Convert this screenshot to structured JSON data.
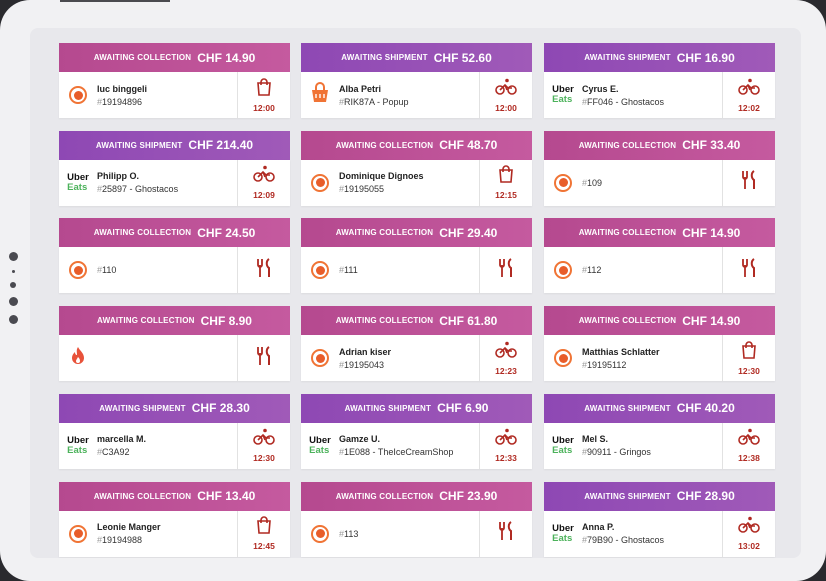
{
  "orders": [
    {
      "status": "AWAITING COLLECTION",
      "amount": "CHF 14.90",
      "kind": "collection",
      "logo": "circle-icon",
      "name": "luc binggeli",
      "ref": "19194896",
      "icon": "bag-icon",
      "time": "12:00"
    },
    {
      "status": "AWAITING SHIPMENT",
      "amount": "CHF 52.60",
      "kind": "shipment",
      "logo": "bag-logo-icon",
      "name": "Alba Petri",
      "ref": "RIK87A - Popup",
      "icon": "bike-icon",
      "time": "12:00"
    },
    {
      "status": "AWAITING SHIPMENT",
      "amount": "CHF 16.90",
      "kind": "shipment",
      "logo": "uber-eats",
      "name": "Cyrus E.",
      "ref": "FF046 - Ghostacos",
      "icon": "bike-icon",
      "time": "12:02"
    },
    {
      "status": "AWAITING SHIPMENT",
      "amount": "CHF 214.40",
      "kind": "shipment",
      "logo": "uber-eats",
      "name": "Philipp O.",
      "ref": "25897 - Ghostacos",
      "icon": "bike-icon",
      "time": "12:09"
    },
    {
      "status": "AWAITING COLLECTION",
      "amount": "CHF 48.70",
      "kind": "collection",
      "logo": "circle-icon",
      "name": "Dominique Dignoes",
      "ref": "19195055",
      "icon": "bag-icon",
      "time": "12:15"
    },
    {
      "status": "AWAITING COLLECTION",
      "amount": "CHF 33.40",
      "kind": "collection",
      "logo": "circle-icon",
      "name": "",
      "ref": "109",
      "icon": "fork-knife-icon",
      "time": ""
    },
    {
      "status": "AWAITING COLLECTION",
      "amount": "CHF 24.50",
      "kind": "collection",
      "logo": "circle-icon",
      "name": "",
      "ref": "110",
      "icon": "fork-knife-icon",
      "time": ""
    },
    {
      "status": "AWAITING COLLECTION",
      "amount": "CHF 29.40",
      "kind": "collection",
      "logo": "circle-icon",
      "name": "",
      "ref": "111",
      "icon": "fork-knife-icon",
      "time": ""
    },
    {
      "status": "AWAITING COLLECTION",
      "amount": "CHF 14.90",
      "kind": "collection",
      "logo": "circle-icon",
      "name": "",
      "ref": "112",
      "icon": "fork-knife-icon",
      "time": ""
    },
    {
      "status": "AWAITING COLLECTION",
      "amount": "CHF 8.90",
      "kind": "collection",
      "logo": "flame-icon",
      "name": "",
      "ref": "",
      "icon": "fork-knife-icon",
      "time": ""
    },
    {
      "status": "AWAITING COLLECTION",
      "amount": "CHF 61.80",
      "kind": "collection",
      "logo": "circle-icon",
      "name": "Adrian kiser",
      "ref": "19195043",
      "icon": "bike-icon",
      "time": "12:23"
    },
    {
      "status": "AWAITING COLLECTION",
      "amount": "CHF 14.90",
      "kind": "collection",
      "logo": "circle-icon",
      "name": "Matthias Schlatter",
      "ref": "19195112",
      "icon": "bag-icon",
      "time": "12:30"
    },
    {
      "status": "AWAITING SHIPMENT",
      "amount": "CHF 28.30",
      "kind": "shipment",
      "logo": "uber-eats",
      "name": "marcella M.",
      "ref": "C3A92",
      "icon": "bike-icon",
      "time": "12:30"
    },
    {
      "status": "AWAITING SHIPMENT",
      "amount": "CHF 6.90",
      "kind": "shipment",
      "logo": "uber-eats",
      "name": "Gamze U.",
      "ref": "1E088 - TheIceCreamShop",
      "icon": "bike-icon",
      "time": "12:33"
    },
    {
      "status": "AWAITING SHIPMENT",
      "amount": "CHF 40.20",
      "kind": "shipment",
      "logo": "uber-eats",
      "name": "Mel S.",
      "ref": "90911 - Gringos",
      "icon": "bike-icon",
      "time": "12:38"
    },
    {
      "status": "AWAITING COLLECTION",
      "amount": "CHF 13.40",
      "kind": "collection",
      "logo": "circle-icon",
      "name": "Leonie Manger",
      "ref": "19194988",
      "icon": "bag-icon",
      "time": "12:45"
    },
    {
      "status": "AWAITING COLLECTION",
      "amount": "CHF 23.90",
      "kind": "collection",
      "logo": "circle-icon",
      "name": "",
      "ref": "113",
      "icon": "fork-knife-icon",
      "time": ""
    },
    {
      "status": "AWAITING SHIPMENT",
      "amount": "CHF 28.90",
      "kind": "shipment",
      "logo": "uber-eats",
      "name": "Anna P.",
      "ref": "79B90 - Ghostacos",
      "icon": "bike-icon",
      "time": "13:02"
    }
  ],
  "uber_eats": {
    "line1": "Uber",
    "line2": "Eats"
  },
  "colors": {
    "collection": "#b5498f",
    "shipment": "#8e48b4",
    "time": "#b02a22",
    "uber_green": "#4cb25b",
    "orange": "#e85d2a"
  }
}
